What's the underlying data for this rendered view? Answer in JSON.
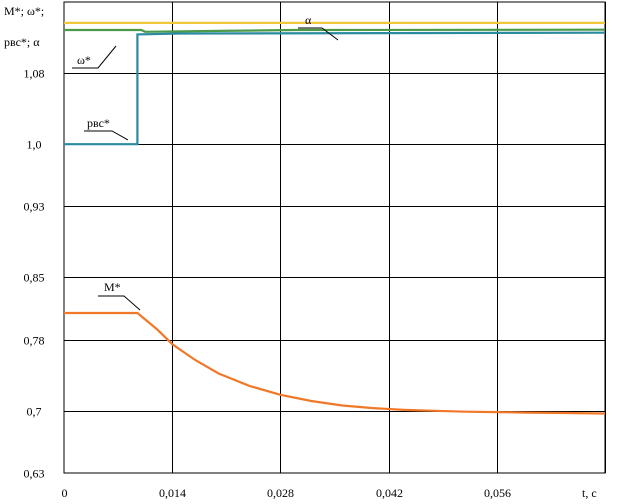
{
  "chart_data": {
    "type": "line",
    "y_axis_label_line1": "M*; ω*;",
    "y_axis_label_line2": "pвс*; α",
    "x_axis_label": "t, c",
    "xlim": [
      0,
      0.07
    ],
    "ylim": [
      0.63,
      1.16
    ],
    "x_ticks": [
      "0",
      "0,014",
      "0,028",
      "0,042",
      "0,056"
    ],
    "x_tick_values": [
      0,
      0.014,
      0.028,
      0.042,
      0.056
    ],
    "y_ticks": [
      "0,63",
      "0,7",
      "0,78",
      "0,85",
      "0,93",
      "1,0",
      "1,08"
    ],
    "y_tick_values": [
      0.63,
      0.7,
      0.78,
      0.85,
      0.93,
      1.0,
      1.08
    ],
    "grid": true,
    "series": [
      {
        "name": "α",
        "color": "#f0c83c",
        "x": [
          0,
          0.07
        ],
        "y": [
          1.1365,
          1.1365
        ]
      },
      {
        "name": "ω*",
        "color": "#4a9a4a",
        "x": [
          0,
          0.01,
          0.0105,
          0.02,
          0.03,
          0.07
        ],
        "y": [
          1.1285,
          1.1285,
          1.1265,
          1.1275,
          1.1285,
          1.1288
        ]
      },
      {
        "name": "pвс*",
        "color": "#2a8aa0",
        "x": [
          0,
          0.0095,
          0.0095,
          0.015,
          0.07
        ],
        "y": [
          1.0,
          1.0,
          1.1235,
          1.1245,
          1.1255
        ]
      },
      {
        "name": "M*",
        "color": "#f07828",
        "x": [
          0,
          0.0095,
          0.012,
          0.014,
          0.017,
          0.02,
          0.024,
          0.028,
          0.032,
          0.036,
          0.04,
          0.044,
          0.048,
          0.052,
          0.056,
          0.06,
          0.065,
          0.07
        ],
        "y": [
          0.81,
          0.81,
          0.792,
          0.775,
          0.757,
          0.742,
          0.728,
          0.718,
          0.711,
          0.706,
          0.703,
          0.701,
          0.7,
          0.699,
          0.6985,
          0.698,
          0.6975,
          0.697
        ]
      }
    ]
  }
}
